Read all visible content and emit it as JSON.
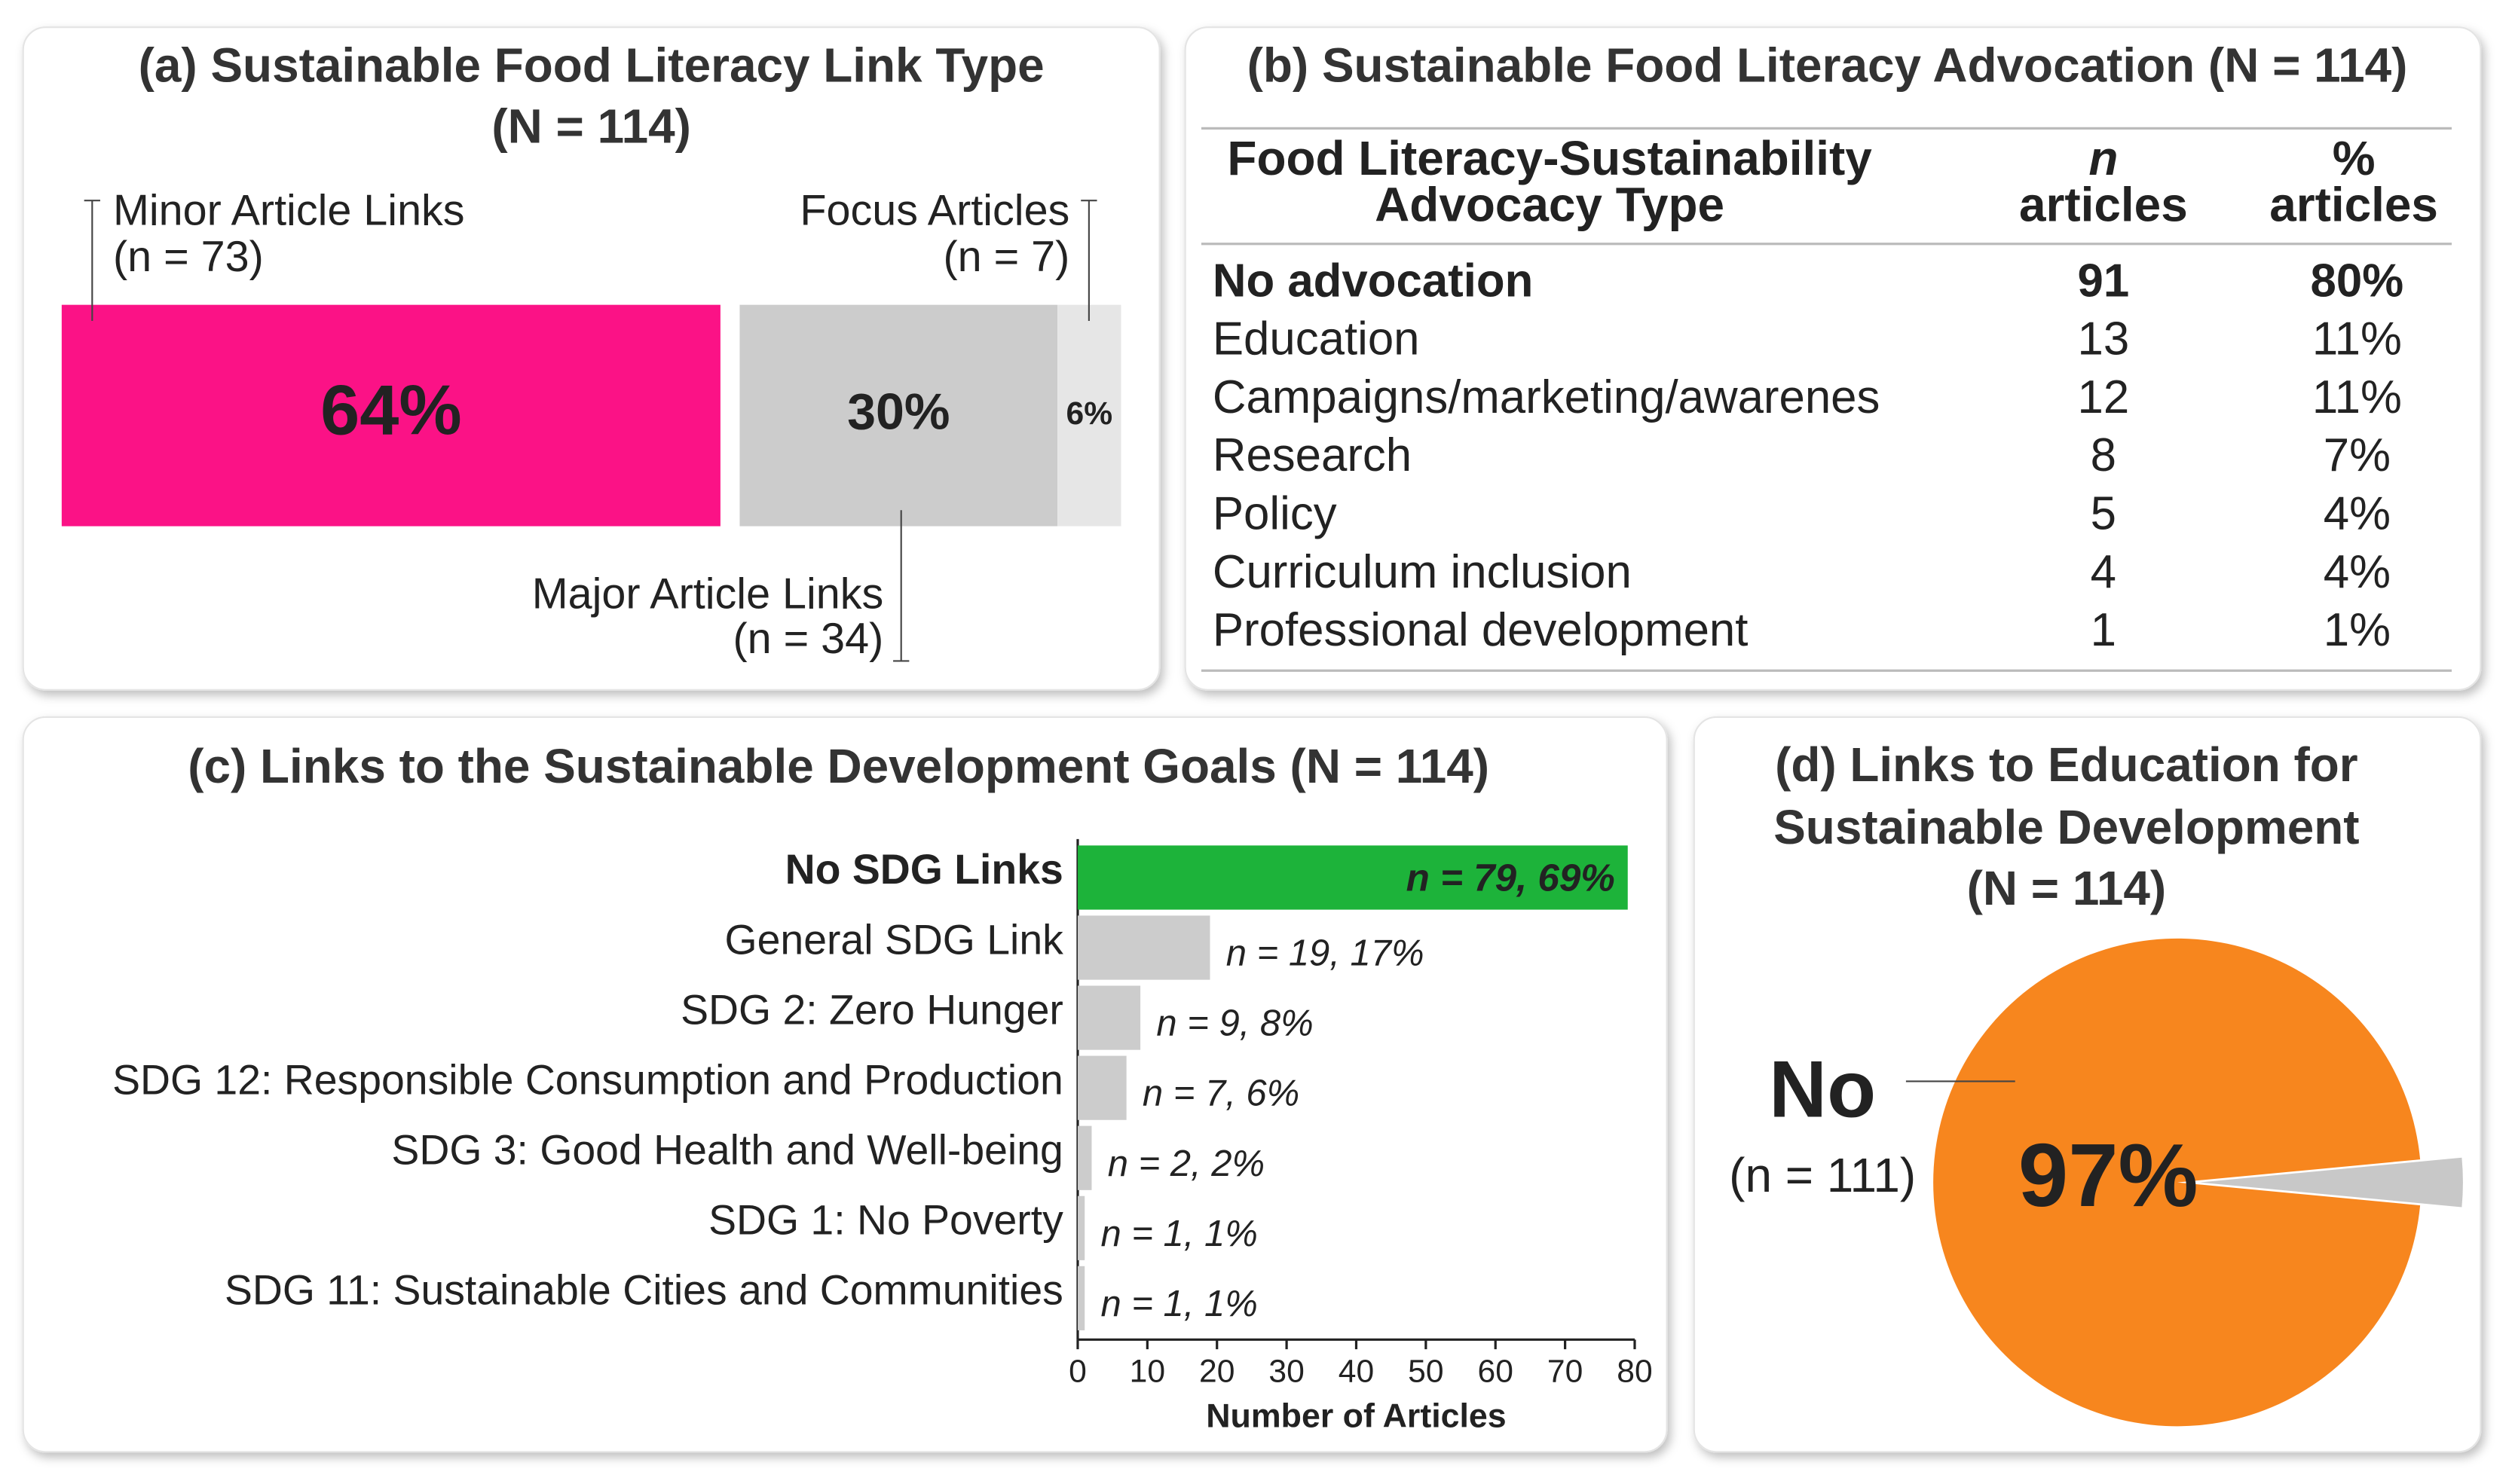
{
  "chart_data": [
    {
      "type": "stacked_bar",
      "title": [
        "(a) Sustainable Food Literacy Link Type",
        "(N = 114)"
      ],
      "series": [
        {
          "name": "Minor Article Links",
          "annotation": "(n = 73)",
          "color": "#fb1286",
          "values": [
            64
          ],
          "value_labels": [
            "64%"
          ]
        },
        {
          "name": "Major Article Links",
          "annotation": "(n = 34)",
          "color": "#cccccc",
          "values": [
            30
          ],
          "value_labels": [
            "30%"
          ]
        },
        {
          "name": "Focus Articles",
          "annotation": "(n = 7)",
          "color": "#e6e6e6",
          "values": [
            6
          ],
          "value_labels": [
            "6%"
          ]
        }
      ]
    },
    {
      "type": "table",
      "title": "(b) Sustainable Food Literacy Advocation (N = 114)",
      "columns": [
        [
          "Food Literacy-Sustainability",
          "Advocacy Type"
        ],
        [
          "n",
          "articles"
        ],
        [
          "%",
          "articles"
        ]
      ],
      "rows": [
        [
          "No advocation",
          91,
          "80%"
        ],
        [
          "Education",
          13,
          "11%"
        ],
        [
          "Campaigns/marketing/awarenes",
          12,
          "11%"
        ],
        [
          "Research",
          8,
          "7%"
        ],
        [
          "Policy",
          5,
          "4%"
        ],
        [
          "Curriculum inclusion",
          4,
          "4%"
        ],
        [
          "Professional development",
          1,
          "1%"
        ]
      ]
    },
    {
      "type": "hbar",
      "title": "(c) Links to the Sustainable Development Goals (N = 114)",
      "categories": [
        "No SDG Links",
        "General SDG Link",
        "SDG 2: Zero Hunger",
        "SDG 12: Responsible Consumption and Production",
        "SDG 3: Good Health and Well-being",
        "SDG 1: No Poverty",
        "SDG 11: Sustainable Cities and Communities"
      ],
      "values": [
        79,
        19,
        9,
        7,
        2,
        1,
        1
      ],
      "value_labels": [
        "n = 79, 69%",
        "n = 19, 17%",
        "n = 9, 8%",
        "n = 7, 6%",
        "n = 2, 2%",
        "n = 1, 1%",
        "n = 1, 1%"
      ],
      "colors": [
        "#1db33a",
        "#cccccc",
        "#cccccc",
        "#cccccc",
        "#cccccc",
        "#cccccc",
        "#cccccc"
      ],
      "xlim": [
        0,
        80
      ],
      "xticks": [
        0,
        10,
        20,
        30,
        40,
        50,
        60,
        70,
        80
      ],
      "xlabel": "Number of Articles"
    },
    {
      "type": "pie",
      "title": [
        "(d) Links to Education for",
        "Sustainable Development",
        "(N = 114)"
      ],
      "categories": [
        "No",
        null
      ],
      "annotations": [
        "(n = 111)",
        null
      ],
      "values": [
        97,
        3
      ],
      "value_labels": [
        "97%",
        null
      ],
      "colors": [
        "#f7861e",
        "#c8c8c8"
      ]
    }
  ]
}
